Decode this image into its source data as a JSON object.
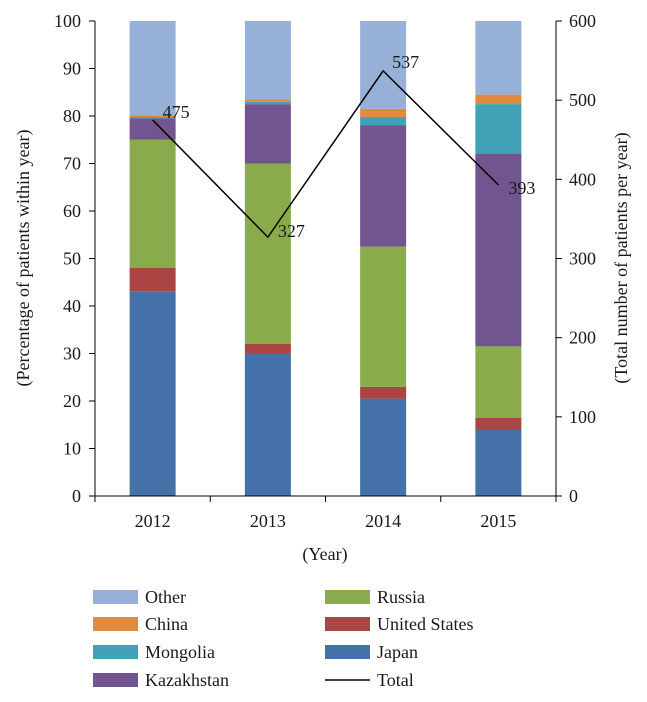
{
  "chart_data": {
    "type": "bar",
    "stacked": true,
    "categories": [
      "2012",
      "2013",
      "2014",
      "2015"
    ],
    "xlabel": "(Year)",
    "ylabel": "(Percentage of patients within year)",
    "y2label": "(Total number of patients per year)",
    "ylim": [
      0,
      100
    ],
    "y2lim": [
      0,
      600
    ],
    "yticks": [
      "0",
      "10",
      "20",
      "30",
      "40",
      "50",
      "60",
      "70",
      "80",
      "90",
      "100"
    ],
    "y2ticks": [
      "0",
      "100",
      "200",
      "300",
      "400",
      "500",
      "600"
    ],
    "series": [
      {
        "name": "Japan",
        "color": "#4472a8",
        "values": [
          43,
          30,
          20.5,
          14
        ]
      },
      {
        "name": "United States",
        "color": "#ab4543",
        "values": [
          5,
          2,
          2.5,
          2.5
        ]
      },
      {
        "name": "Russia",
        "color": "#8aab4c",
        "values": [
          27,
          38,
          29.5,
          15
        ]
      },
      {
        "name": "Kazakhstan",
        "color": "#71558f",
        "values": [
          4.5,
          12.5,
          25.5,
          40.5
        ]
      },
      {
        "name": "Mongolia",
        "color": "#41a1b7",
        "values": [
          0.3,
          0.5,
          1.8,
          10.5
        ]
      },
      {
        "name": "China",
        "color": "#e08a3e",
        "values": [
          0.3,
          0.5,
          1.7,
          2
        ]
      },
      {
        "name": "Other",
        "color": "#97b0d8",
        "values": [
          19.9,
          16.5,
          18.5,
          15.5
        ]
      }
    ],
    "line": {
      "name": "Total",
      "color": "#000000",
      "values": [
        475,
        327,
        537,
        393
      ],
      "labels": [
        "475",
        "327",
        "537",
        "393"
      ]
    },
    "legend": {
      "placement": "bottom",
      "left_column": [
        "Other",
        "China",
        "Mongolia",
        "Kazakhstan"
      ],
      "right_column": [
        "Russia",
        "United States",
        "Japan",
        "Total"
      ]
    }
  }
}
